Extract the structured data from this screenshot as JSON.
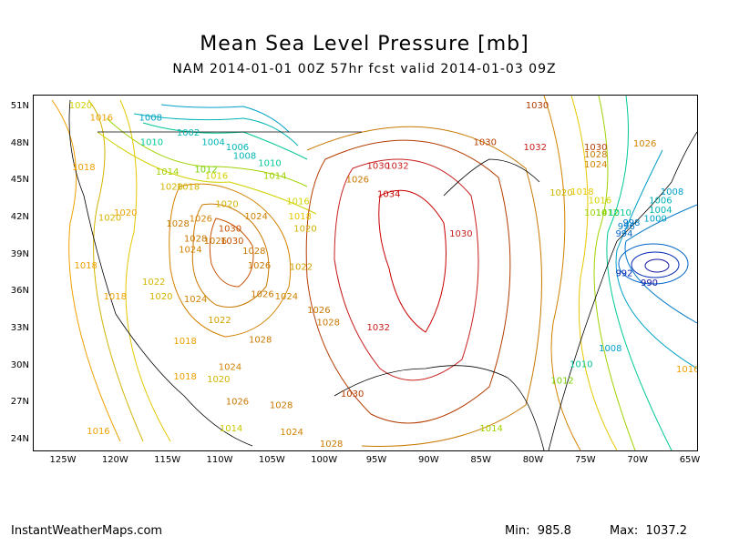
{
  "title": "Mean Sea Level Pressure [mb]",
  "subtitle": "NAM 2014-01-01 00Z 57hr fcst valid 2014-01-03 09Z",
  "lat_labels": [
    "51N",
    "48N",
    "45N",
    "42N",
    "39N",
    "36N",
    "33N",
    "30N",
    "27N",
    "24N"
  ],
  "lon_labels": [
    "125W",
    "120W",
    "115W",
    "110W",
    "105W",
    "100W",
    "95W",
    "90W",
    "85W",
    "80W",
    "75W",
    "70W",
    "65W"
  ],
  "isobar_labels": [
    {
      "text": "1020",
      "lat": 51.0,
      "lon": -124.5,
      "color": "#d2d200"
    },
    {
      "text": "1016",
      "lat": 50.0,
      "lon": -122.5,
      "color": "#f0a000"
    },
    {
      "text": "1008",
      "lat": 50.0,
      "lon": -117.8,
      "color": "#00a0c8"
    },
    {
      "text": "1002",
      "lat": 48.8,
      "lon": -114.2,
      "color": "#00b4b4"
    },
    {
      "text": "1004",
      "lat": 48.0,
      "lon": -111.8,
      "color": "#00b4b4"
    },
    {
      "text": "1006",
      "lat": 47.6,
      "lon": -109.5,
      "color": "#00b4b4"
    },
    {
      "text": "1008",
      "lat": 46.9,
      "lon": -108.8,
      "color": "#00b4b4"
    },
    {
      "text": "1010",
      "lat": 48.0,
      "lon": -117.7,
      "color": "#00c896"
    },
    {
      "text": "1010",
      "lat": 46.3,
      "lon": -106.4,
      "color": "#00c896"
    },
    {
      "text": "1012",
      "lat": 45.8,
      "lon": -112.5,
      "color": "#78d200"
    },
    {
      "text": "1014",
      "lat": 45.3,
      "lon": -105.9,
      "color": "#a0d200"
    },
    {
      "text": "1016",
      "lat": 45.3,
      "lon": -111.5,
      "color": "#d2d200"
    },
    {
      "text": "1018",
      "lat": 46.0,
      "lon": -124.2,
      "color": "#f0a000"
    },
    {
      "text": "1014",
      "lat": 45.6,
      "lon": -116.2,
      "color": "#a0d200"
    },
    {
      "text": "1020",
      "lat": 44.4,
      "lon": -115.8,
      "color": "#d2b400"
    },
    {
      "text": "1018",
      "lat": 44.4,
      "lon": -114.2,
      "color": "#d2b400"
    },
    {
      "text": "1020",
      "lat": 43.0,
      "lon": -110.5,
      "color": "#d2b400"
    },
    {
      "text": "1016",
      "lat": 43.2,
      "lon": -103.7,
      "color": "#d2d200"
    },
    {
      "text": "1018",
      "lat": 42.0,
      "lon": -103.5,
      "color": "#e6c800"
    },
    {
      "text": "1020",
      "lat": 42.3,
      "lon": -120.2,
      "color": "#f0a000"
    },
    {
      "text": "1020",
      "lat": 41.9,
      "lon": -121.7,
      "color": "#d2b400"
    },
    {
      "text": "1026",
      "lat": 41.8,
      "lon": -113.0,
      "color": "#d28200"
    },
    {
      "text": "1028",
      "lat": 41.4,
      "lon": -115.2,
      "color": "#c87800"
    },
    {
      "text": "1024",
      "lat": 42.0,
      "lon": -107.7,
      "color": "#d28200"
    },
    {
      "text": "1030",
      "lat": 41.0,
      "lon": -110.2,
      "color": "#c85000"
    },
    {
      "text": "1028",
      "lat": 40.2,
      "lon": -113.5,
      "color": "#c87800"
    },
    {
      "text": "1026",
      "lat": 40.0,
      "lon": -111.6,
      "color": "#c87800"
    },
    {
      "text": "1030",
      "lat": 40.0,
      "lon": -110.0,
      "color": "#c85000"
    },
    {
      "text": "1020",
      "lat": 41.0,
      "lon": -103.0,
      "color": "#d2b400"
    },
    {
      "text": "1028",
      "lat": 39.2,
      "lon": -107.9,
      "color": "#c87800"
    },
    {
      "text": "1026",
      "lat": 38.0,
      "lon": -107.4,
      "color": "#c87800"
    },
    {
      "text": "1022",
      "lat": 37.9,
      "lon": -103.4,
      "color": "#d2a000"
    },
    {
      "text": "1024",
      "lat": 39.3,
      "lon": -114.0,
      "color": "#d28200"
    },
    {
      "text": "1018",
      "lat": 38.0,
      "lon": -124.0,
      "color": "#f0a000"
    },
    {
      "text": "1022",
      "lat": 36.7,
      "lon": -117.5,
      "color": "#d2b400"
    },
    {
      "text": "1020",
      "lat": 35.5,
      "lon": -116.8,
      "color": "#d2b400"
    },
    {
      "text": "1018",
      "lat": 35.5,
      "lon": -121.2,
      "color": "#f0a000"
    },
    {
      "text": "1024",
      "lat": 35.3,
      "lon": -113.5,
      "color": "#d28200"
    },
    {
      "text": "1026",
      "lat": 35.7,
      "lon": -107.1,
      "color": "#c87800"
    },
    {
      "text": "1024",
      "lat": 35.5,
      "lon": -104.8,
      "color": "#d28200"
    },
    {
      "text": "1026",
      "lat": 34.4,
      "lon": -101.7,
      "color": "#c87800"
    },
    {
      "text": "1028",
      "lat": 33.4,
      "lon": -100.8,
      "color": "#c87800"
    },
    {
      "text": "1022",
      "lat": 33.6,
      "lon": -111.2,
      "color": "#d2a000"
    },
    {
      "text": "1028",
      "lat": 32.0,
      "lon": -107.3,
      "color": "#c87800"
    },
    {
      "text": "1018",
      "lat": 31.9,
      "lon": -114.5,
      "color": "#f0a000"
    },
    {
      "text": "1024",
      "lat": 29.8,
      "lon": -110.2,
      "color": "#d28200"
    },
    {
      "text": "1018",
      "lat": 29.0,
      "lon": -114.5,
      "color": "#f0a000"
    },
    {
      "text": "1020",
      "lat": 28.8,
      "lon": -111.3,
      "color": "#d2b400"
    },
    {
      "text": "1026",
      "lat": 27.0,
      "lon": -109.5,
      "color": "#c87800"
    },
    {
      "text": "1028",
      "lat": 26.7,
      "lon": -105.3,
      "color": "#c87800"
    },
    {
      "text": "1016",
      "lat": 24.6,
      "lon": -122.8,
      "color": "#f0a000"
    },
    {
      "text": "1014",
      "lat": 24.8,
      "lon": -110.1,
      "color": "#c8c800"
    },
    {
      "text": "1024",
      "lat": 24.5,
      "lon": -104.3,
      "color": "#d28200"
    },
    {
      "text": "1028",
      "lat": 23.4,
      "lon": -100.5,
      "color": "#c87800"
    },
    {
      "text": "1030",
      "lat": 27.6,
      "lon": -98.5,
      "color": "#b43c00"
    },
    {
      "text": "1032",
      "lat": 33.0,
      "lon": -96.0,
      "color": "#c81e1e"
    },
    {
      "text": "1034",
      "lat": 43.8,
      "lon": -95.0,
      "color": "#c80000"
    },
    {
      "text": "1032",
      "lat": 46.1,
      "lon": -94.2,
      "color": "#c81e1e"
    },
    {
      "text": "1030",
      "lat": 46.1,
      "lon": -96.0,
      "color": "#c81e1e"
    },
    {
      "text": "1030",
      "lat": 48.0,
      "lon": -85.8,
      "color": "#b43c00"
    },
    {
      "text": "1032",
      "lat": 47.6,
      "lon": -81.0,
      "color": "#c81e1e"
    },
    {
      "text": "1030",
      "lat": 51.0,
      "lon": -80.8,
      "color": "#b43c00"
    },
    {
      "text": "1030",
      "lat": 47.6,
      "lon": -75.2,
      "color": "#b43c00"
    },
    {
      "text": "1028",
      "lat": 47.0,
      "lon": -75.2,
      "color": "#c87800"
    },
    {
      "text": "1026",
      "lat": 47.9,
      "lon": -70.5,
      "color": "#d28200"
    },
    {
      "text": "1024",
      "lat": 46.2,
      "lon": -75.2,
      "color": "#d28200"
    },
    {
      "text": "1030",
      "lat": 40.6,
      "lon": -88.1,
      "color": "#c81e1e"
    },
    {
      "text": "1026",
      "lat": 45.0,
      "lon": -98.0,
      "color": "#c87800"
    },
    {
      "text": "1020",
      "lat": 43.9,
      "lon": -78.5,
      "color": "#d2b400"
    },
    {
      "text": "1018",
      "lat": 44.0,
      "lon": -76.5,
      "color": "#e6c800"
    },
    {
      "text": "1016",
      "lat": 43.3,
      "lon": -74.8,
      "color": "#d2d200"
    },
    {
      "text": "1014",
      "lat": 42.3,
      "lon": -75.2,
      "color": "#a0d200"
    },
    {
      "text": "1012",
      "lat": 42.3,
      "lon": -74.1,
      "color": "#78d200"
    },
    {
      "text": "1010",
      "lat": 42.3,
      "lon": -72.9,
      "color": "#00c896"
    },
    {
      "text": "1008",
      "lat": 44.0,
      "lon": -67.9,
      "color": "#00a0c8"
    },
    {
      "text": "1006",
      "lat": 43.3,
      "lon": -69.0,
      "color": "#00b4b4"
    },
    {
      "text": "1004",
      "lat": 42.5,
      "lon": -69.0,
      "color": "#00b4b4"
    },
    {
      "text": "1000",
      "lat": 41.8,
      "lon": -69.5,
      "color": "#00a0c8"
    },
    {
      "text": "998",
      "lat": 41.5,
      "lon": -71.5,
      "color": "#0078c8"
    },
    {
      "text": "996",
      "lat": 41.2,
      "lon": -72.0,
      "color": "#0078c8"
    },
    {
      "text": "994",
      "lat": 40.6,
      "lon": -72.2,
      "color": "#0064c8"
    },
    {
      "text": "992",
      "lat": 37.4,
      "lon": -72.2,
      "color": "#0028b4"
    },
    {
      "text": "990",
      "lat": 36.6,
      "lon": -69.8,
      "color": "#1414a0"
    },
    {
      "text": "1008",
      "lat": 31.3,
      "lon": -73.8,
      "color": "#00a0c8"
    },
    {
      "text": "1010",
      "lat": 30.0,
      "lon": -76.6,
      "color": "#00c896"
    },
    {
      "text": "1012",
      "lat": 28.7,
      "lon": -78.4,
      "color": "#78d200"
    },
    {
      "text": "1014",
      "lat": 24.8,
      "lon": -85.2,
      "color": "#a0d200"
    },
    {
      "text": "1016",
      "lat": 29.6,
      "lon": -66.2,
      "color": "#f0a000"
    }
  ],
  "footer": {
    "source": "InstantWeatherMaps.com",
    "min_label": "Min:",
    "min_value": "985.8",
    "max_label": "Max:",
    "max_value": "1037.2"
  }
}
